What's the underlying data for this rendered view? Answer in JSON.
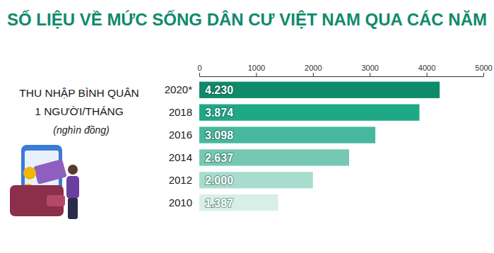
{
  "chart_data": {
    "type": "bar",
    "orientation": "horizontal",
    "title": "SỐ LIỆU VỀ MỨC SỐNG DÂN CƯ VIỆT NAM QUA CÁC NĂM",
    "ylabel": [
      "THU NHẬP BÌNH QUÂN",
      "1 NGƯỜI/THÁNG",
      "(nghìn đồng)"
    ],
    "categories": [
      "2020*",
      "2018",
      "2016",
      "2014",
      "2012",
      "2010"
    ],
    "values": [
      4230,
      3874,
      3098,
      2637,
      2000,
      1387
    ],
    "value_labels": [
      "4.230",
      "3.874",
      "3.098",
      "2.637",
      "2.000",
      "1.387"
    ],
    "colors": [
      "#0f8a6b",
      "#1ea886",
      "#46b89d",
      "#76c8b3",
      "#a8dccd",
      "#d8efe8"
    ],
    "xlim": [
      0,
      5000
    ],
    "xticks": [
      0,
      1000,
      2000,
      3000,
      4000,
      5000
    ],
    "data_labels": true,
    "grid": false
  }
}
